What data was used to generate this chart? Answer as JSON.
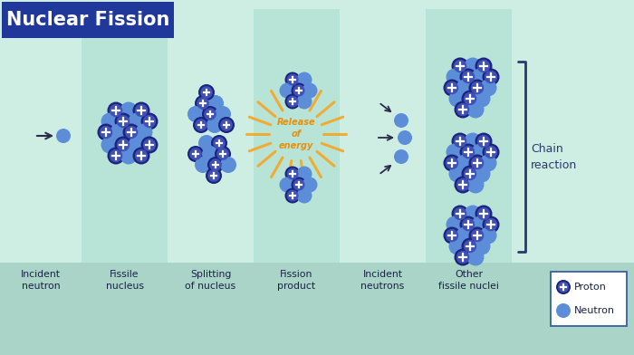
{
  "title": "Nuclear Fission",
  "title_bg": "#1f3899",
  "title_color": "#ffffff",
  "bg_color": "#ceeee4",
  "panel_alt_color": "#b8e4d8",
  "bottom_bg": "#aad4c8",
  "proton_outer": "#1a237e",
  "proton_inner": "#3f51b5",
  "neutron_color": "#5b8dd9",
  "arrow_color": "#2a2a4a",
  "energy_color": "#f5a623",
  "energy_text_color": "#e8900a",
  "bracket_color": "#2a3a6a",
  "text_color": "#1a2244",
  "chain_text_color": "#2a3a6a",
  "legend_border": "#3a5fa0",
  "labels": [
    "Incident\nneutron",
    "Fissile\nnucleus",
    "Splitting\nof nucleus",
    "Fission\nproduct",
    "Incident\nneutrons",
    "Other\nfissile nuclei"
  ],
  "chain_reaction_text": "Chain\nreaction",
  "release_energy_text": "Release\nof\nenergy",
  "panel_boundaries": [
    0,
    90,
    185,
    280,
    375,
    470,
    565
  ],
  "fig_width": 7.0,
  "fig_height": 3.92,
  "dpi": 100
}
